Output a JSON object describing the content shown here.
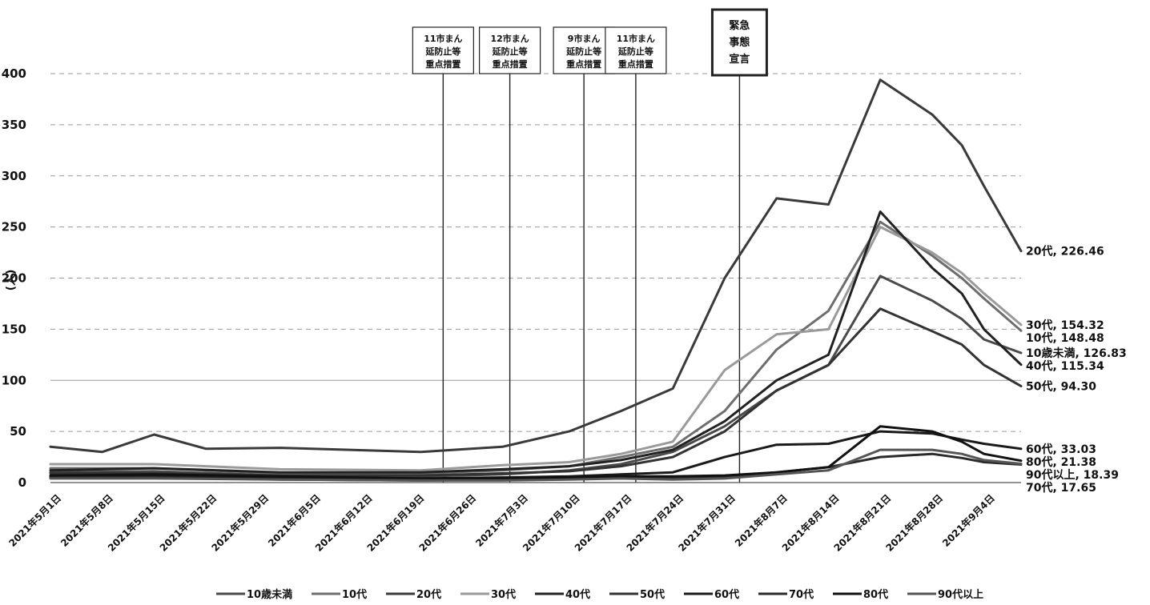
{
  "chart_data": {
    "type": "line",
    "title": "",
    "xlabel": "",
    "ylabel": "(人)",
    "ylim": [
      0,
      400
    ],
    "yticks": [
      "0",
      "50",
      "100",
      "150",
      "200",
      "250",
      "300",
      "350",
      "400"
    ],
    "xlim": [
      "2021-05-01",
      "2021-09-09"
    ],
    "xtick_labels": [
      "2021年5月1日",
      "2021年5月8日",
      "2021年5月15日",
      "2021年5月22日",
      "2021年5月29日",
      "2021年6月5日",
      "2021年6月12日",
      "2021年6月19日",
      "2021年6月26日",
      "2021年7月3日",
      "2021年7月10日",
      "2021年7月17日",
      "2021年7月24日",
      "2021年7月31日",
      "2021年8月7日",
      "2021年8月14日",
      "2021年8月21日",
      "2021年8月28日",
      "2021年9月4日"
    ],
    "grid": "horizontal",
    "legend_position": "bottom",
    "annotations": [
      {
        "date": "2021-06-23",
        "lines": [
          "11市まん",
          "延防止等",
          "重点措置"
        ],
        "emphasis": false
      },
      {
        "date": "2021-07-02",
        "lines": [
          "12市まん",
          "延防止等",
          "重点措置"
        ],
        "emphasis": false
      },
      {
        "date": "2021-07-12",
        "lines": [
          "9市まん",
          "延防止等",
          "重点措置"
        ],
        "emphasis": false
      },
      {
        "date": "2021-07-19",
        "lines": [
          "11市まん",
          "延防止等",
          "重点措置"
        ],
        "emphasis": false
      },
      {
        "date": "2021-08-02",
        "lines": [
          "緊急",
          "事態",
          "宣言"
        ],
        "emphasis": true
      }
    ],
    "series": [
      {
        "name": "10歳未満",
        "color": "#4a4a4a",
        "end_label": "10歳未満, 126.83",
        "points": [
          [
            "2021-05-01",
            10
          ],
          [
            "2021-05-15",
            11
          ],
          [
            "2021-06-01",
            7
          ],
          [
            "2021-06-20",
            6
          ],
          [
            "2021-07-01",
            8
          ],
          [
            "2021-07-10",
            12
          ],
          [
            "2021-07-17",
            18
          ],
          [
            "2021-07-24",
            30
          ],
          [
            "2021-07-31",
            55
          ],
          [
            "2021-08-07",
            90
          ],
          [
            "2021-08-14",
            115
          ],
          [
            "2021-08-21",
            202
          ],
          [
            "2021-08-28",
            178
          ],
          [
            "2021-09-01",
            160
          ],
          [
            "2021-09-04",
            140
          ],
          [
            "2021-09-09",
            126.83
          ]
        ]
      },
      {
        "name": "10代",
        "color": "#6e6e6e",
        "end_label": "10代, 148.48",
        "points": [
          [
            "2021-05-01",
            14
          ],
          [
            "2021-05-15",
            14
          ],
          [
            "2021-06-01",
            9
          ],
          [
            "2021-06-20",
            9
          ],
          [
            "2021-07-01",
            12
          ],
          [
            "2021-07-10",
            16
          ],
          [
            "2021-07-17",
            25
          ],
          [
            "2021-07-24",
            35
          ],
          [
            "2021-07-31",
            70
          ],
          [
            "2021-08-07",
            130
          ],
          [
            "2021-08-14",
            168
          ],
          [
            "2021-08-21",
            255
          ],
          [
            "2021-08-28",
            222
          ],
          [
            "2021-09-01",
            200
          ],
          [
            "2021-09-04",
            180
          ],
          [
            "2021-09-09",
            148.48
          ]
        ]
      },
      {
        "name": "20代",
        "color": "#3a3a3a",
        "end_label": "20代, 226.46",
        "points": [
          [
            "2021-05-01",
            35
          ],
          [
            "2021-05-08",
            30
          ],
          [
            "2021-05-15",
            47
          ],
          [
            "2021-05-22",
            33
          ],
          [
            "2021-06-01",
            34
          ],
          [
            "2021-06-20",
            30
          ],
          [
            "2021-07-01",
            35
          ],
          [
            "2021-07-10",
            50
          ],
          [
            "2021-07-17",
            70
          ],
          [
            "2021-07-24",
            92
          ],
          [
            "2021-07-31",
            200
          ],
          [
            "2021-08-07",
            278
          ],
          [
            "2021-08-14",
            272
          ],
          [
            "2021-08-21",
            394
          ],
          [
            "2021-08-28",
            360
          ],
          [
            "2021-09-01",
            330
          ],
          [
            "2021-09-04",
            290
          ],
          [
            "2021-09-09",
            226.46
          ]
        ]
      },
      {
        "name": "30代",
        "color": "#9a9a9a",
        "end_label": "30代, 154.32",
        "points": [
          [
            "2021-05-01",
            18
          ],
          [
            "2021-05-15",
            18
          ],
          [
            "2021-06-01",
            13
          ],
          [
            "2021-06-20",
            12
          ],
          [
            "2021-07-01",
            17
          ],
          [
            "2021-07-10",
            20
          ],
          [
            "2021-07-17",
            28
          ],
          [
            "2021-07-24",
            40
          ],
          [
            "2021-07-31",
            110
          ],
          [
            "2021-08-07",
            145
          ],
          [
            "2021-08-14",
            150
          ],
          [
            "2021-08-21",
            250
          ],
          [
            "2021-08-28",
            225
          ],
          [
            "2021-09-01",
            205
          ],
          [
            "2021-09-04",
            185
          ],
          [
            "2021-09-09",
            154.32
          ]
        ]
      },
      {
        "name": "40代",
        "color": "#222222",
        "end_label": "40代, 115.34",
        "points": [
          [
            "2021-05-01",
            12
          ],
          [
            "2021-05-15",
            14
          ],
          [
            "2021-06-01",
            10
          ],
          [
            "2021-06-20",
            10
          ],
          [
            "2021-07-01",
            13
          ],
          [
            "2021-07-10",
            16
          ],
          [
            "2021-07-17",
            22
          ],
          [
            "2021-07-24",
            32
          ],
          [
            "2021-07-31",
            60
          ],
          [
            "2021-08-07",
            100
          ],
          [
            "2021-08-14",
            125
          ],
          [
            "2021-08-21",
            265
          ],
          [
            "2021-08-28",
            210
          ],
          [
            "2021-09-01",
            185
          ],
          [
            "2021-09-04",
            150
          ],
          [
            "2021-09-09",
            115.34
          ]
        ]
      },
      {
        "name": "50代",
        "color": "#333333",
        "end_label": "50代, 94.30",
        "points": [
          [
            "2021-05-01",
            9
          ],
          [
            "2021-05-15",
            9
          ],
          [
            "2021-06-01",
            7
          ],
          [
            "2021-06-20",
            7
          ],
          [
            "2021-07-01",
            9
          ],
          [
            "2021-07-10",
            11
          ],
          [
            "2021-07-17",
            16
          ],
          [
            "2021-07-24",
            25
          ],
          [
            "2021-07-31",
            50
          ],
          [
            "2021-08-07",
            90
          ],
          [
            "2021-08-14",
            115
          ],
          [
            "2021-08-21",
            170
          ],
          [
            "2021-08-28",
            148
          ],
          [
            "2021-09-01",
            135
          ],
          [
            "2021-09-04",
            115
          ],
          [
            "2021-09-09",
            94.3
          ]
        ]
      },
      {
        "name": "60代",
        "color": "#1a1a1a",
        "end_label": "60代, 33.03",
        "points": [
          [
            "2021-05-01",
            6
          ],
          [
            "2021-05-15",
            6
          ],
          [
            "2021-06-01",
            5
          ],
          [
            "2021-06-20",
            4
          ],
          [
            "2021-07-01",
            5
          ],
          [
            "2021-07-10",
            6
          ],
          [
            "2021-07-17",
            8
          ],
          [
            "2021-07-24",
            10
          ],
          [
            "2021-07-31",
            25
          ],
          [
            "2021-08-07",
            37
          ],
          [
            "2021-08-14",
            38
          ],
          [
            "2021-08-21",
            50
          ],
          [
            "2021-08-28",
            48
          ],
          [
            "2021-09-01",
            42
          ],
          [
            "2021-09-04",
            38
          ],
          [
            "2021-09-09",
            33.03
          ]
        ]
      },
      {
        "name": "70代",
        "color": "#2a2a2a",
        "end_label": "70代, 17.65",
        "points": [
          [
            "2021-05-01",
            5
          ],
          [
            "2021-05-15",
            5
          ],
          [
            "2021-06-01",
            3
          ],
          [
            "2021-06-20",
            2
          ],
          [
            "2021-07-01",
            3
          ],
          [
            "2021-07-10",
            4
          ],
          [
            "2021-07-17",
            5
          ],
          [
            "2021-07-24",
            5
          ],
          [
            "2021-07-31",
            6
          ],
          [
            "2021-08-07",
            10
          ],
          [
            "2021-08-14",
            15
          ],
          [
            "2021-08-21",
            25
          ],
          [
            "2021-08-28",
            28
          ],
          [
            "2021-09-01",
            24
          ],
          [
            "2021-09-04",
            20
          ],
          [
            "2021-09-09",
            17.65
          ]
        ]
      },
      {
        "name": "80代",
        "color": "#111111",
        "end_label": "80代, 21.38",
        "points": [
          [
            "2021-05-01",
            7
          ],
          [
            "2021-05-15",
            8
          ],
          [
            "2021-06-01",
            6
          ],
          [
            "2021-06-20",
            4
          ],
          [
            "2021-07-01",
            4
          ],
          [
            "2021-07-10",
            5
          ],
          [
            "2021-07-17",
            6
          ],
          [
            "2021-07-24",
            6
          ],
          [
            "2021-07-31",
            7
          ],
          [
            "2021-08-07",
            10
          ],
          [
            "2021-08-14",
            15
          ],
          [
            "2021-08-21",
            55
          ],
          [
            "2021-08-28",
            50
          ],
          [
            "2021-09-01",
            40
          ],
          [
            "2021-09-04",
            28
          ],
          [
            "2021-09-09",
            21.38
          ]
        ]
      },
      {
        "name": "90代以上",
        "color": "#555555",
        "end_label": "90代以上, 18.39",
        "points": [
          [
            "2021-05-01",
            4
          ],
          [
            "2021-05-15",
            4
          ],
          [
            "2021-06-01",
            3
          ],
          [
            "2021-06-20",
            2
          ],
          [
            "2021-07-01",
            2
          ],
          [
            "2021-07-10",
            3
          ],
          [
            "2021-07-17",
            4
          ],
          [
            "2021-07-24",
            3
          ],
          [
            "2021-07-31",
            4
          ],
          [
            "2021-08-07",
            8
          ],
          [
            "2021-08-14",
            12
          ],
          [
            "2021-08-21",
            32
          ],
          [
            "2021-08-28",
            32
          ],
          [
            "2021-09-01",
            28
          ],
          [
            "2021-09-04",
            22
          ],
          [
            "2021-09-09",
            18.39
          ]
        ]
      }
    ]
  }
}
